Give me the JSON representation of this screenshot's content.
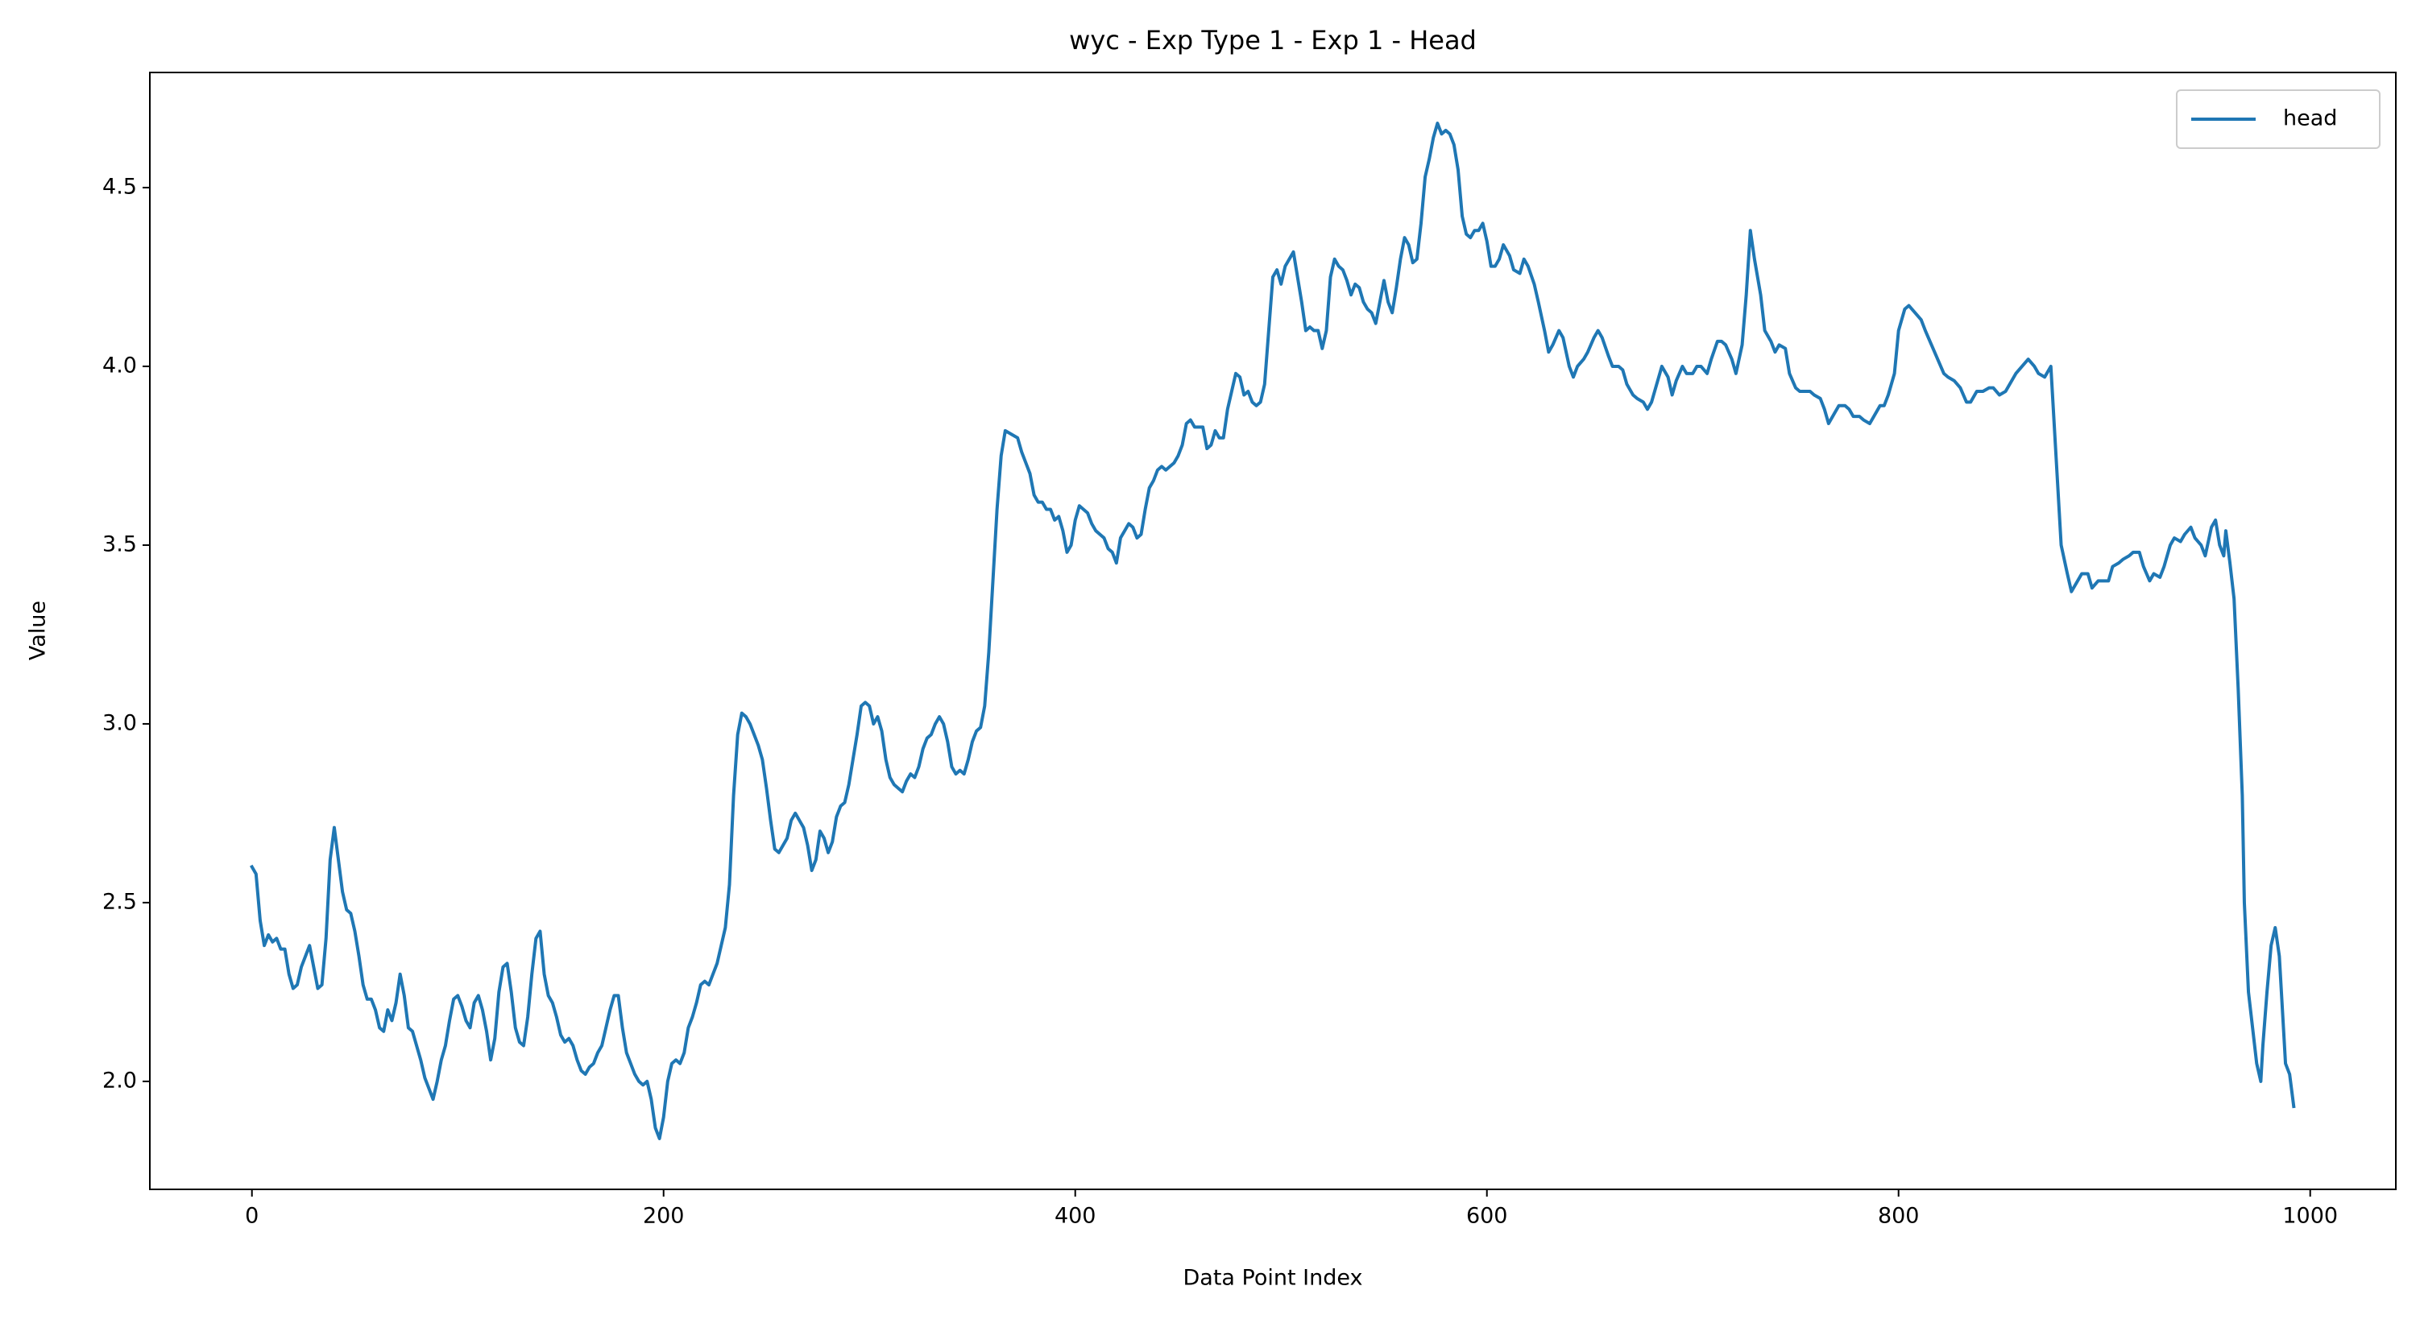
{
  "chart_data": {
    "type": "line",
    "title": "wyc - Exp Type 1 - Exp 1 - Head",
    "xlabel": "Data Point Index",
    "ylabel": "Value",
    "xlim": [
      -49.6,
      1041.6
    ],
    "ylim": [
      1.698,
      4.822
    ],
    "xticks": [
      0,
      200,
      400,
      600,
      800,
      1000
    ],
    "yticks": [
      {
        "value": 2,
        "label": "2.0"
      },
      2.5,
      {
        "value": 3,
        "label": "3.0"
      },
      3.5,
      {
        "value": 4,
        "label": "4.0"
      },
      4.5
    ],
    "grid": false,
    "legend": "upper right",
    "x": [
      0,
      2,
      4,
      6,
      8,
      10,
      12,
      14,
      16,
      18,
      20,
      22,
      24,
      26,
      28,
      30,
      32,
      34,
      36,
      38,
      40,
      42,
      44,
      46,
      48,
      50,
      52,
      54,
      56,
      58,
      60,
      62,
      64,
      66,
      68,
      70,
      72,
      74,
      76,
      78,
      80,
      82,
      84,
      86,
      88,
      90,
      92,
      94,
      96,
      98,
      100,
      102,
      104,
      106,
      108,
      110,
      112,
      114,
      116,
      118,
      120,
      122,
      124,
      126,
      128,
      130,
      132,
      134,
      136,
      138,
      140,
      142,
      144,
      146,
      148,
      150,
      152,
      154,
      156,
      158,
      160,
      162,
      164,
      166,
      168,
      170,
      172,
      174,
      176,
      178,
      180,
      182,
      184,
      186,
      188,
      190,
      192,
      194,
      196,
      198,
      200,
      202,
      204,
      206,
      208,
      210,
      212,
      214,
      216,
      218,
      220,
      222,
      224,
      226,
      228,
      230,
      232,
      234,
      236,
      238,
      240,
      242,
      244,
      246,
      248,
      250,
      252,
      254,
      256,
      258,
      260,
      262,
      264,
      266,
      268,
      270,
      272,
      274,
      276,
      278,
      280,
      282,
      284,
      286,
      288,
      290,
      292,
      294,
      296,
      298,
      300,
      302,
      304,
      306,
      308,
      310,
      312,
      314,
      316,
      318,
      320,
      322,
      324,
      326,
      328,
      330,
      332,
      334,
      336,
      338,
      340,
      342,
      344,
      346,
      348,
      350,
      352,
      354,
      356,
      358,
      360,
      362,
      364,
      366,
      372,
      374,
      376,
      378,
      380,
      382,
      384,
      386,
      388,
      390,
      392,
      394,
      396,
      398,
      400,
      402,
      406,
      408,
      410,
      412,
      414,
      416,
      418,
      420,
      422,
      424,
      426,
      428,
      430,
      432,
      434,
      436,
      438,
      440,
      442,
      444,
      446,
      448,
      450,
      452,
      454,
      456,
      458,
      460,
      462,
      464,
      466,
      468,
      470,
      472,
      474,
      476,
      478,
      480,
      482,
      484,
      486,
      488,
      490,
      492,
      494,
      496,
      498,
      500,
      502,
      504,
      506,
      508,
      510,
      512,
      514,
      516,
      518,
      520,
      522,
      524,
      526,
      528,
      530,
      532,
      534,
      536,
      538,
      540,
      542,
      544,
      546,
      548,
      550,
      552,
      554,
      556,
      558,
      560,
      562,
      564,
      566,
      568,
      570,
      572,
      574,
      576,
      578,
      580,
      582,
      584,
      586,
      588,
      590,
      592,
      594,
      596,
      598,
      600,
      602,
      604,
      606,
      608,
      611,
      613,
      616,
      618,
      620,
      623,
      625,
      628,
      630,
      632,
      635,
      637,
      640,
      642,
      644,
      647,
      649,
      652,
      654,
      656,
      659,
      661,
      664,
      666,
      668,
      671,
      673,
      676,
      678,
      680,
      683,
      685,
      688,
      690,
      692,
      695,
      697,
      700,
      702,
      704,
      707,
      709,
      712,
      714,
      716,
      719,
      721,
      724,
      726,
      728,
      730,
      733,
      735,
      738,
      740,
      742,
      745,
      747,
      750,
      752,
      754,
      757,
      759,
      762,
      764,
      766,
      769,
      771,
      774,
      776,
      778,
      781,
      783,
      786,
      788,
      791,
      793,
      795,
      798,
      800,
      803,
      805,
      808,
      811,
      813,
      816,
      819,
      822,
      824,
      827,
      830,
      833,
      835,
      838,
      841,
      844,
      846,
      849,
      852,
      855,
      857,
      860,
      863,
      866,
      868,
      871,
      874,
      877,
      879,
      882,
      884,
      887,
      889,
      892,
      894,
      897,
      899,
      902,
      904,
      907,
      909,
      912,
      914,
      917,
      919,
      922,
      924,
      927,
      929,
      932,
      934,
      937,
      939,
      942,
      944,
      947,
      949,
      952,
      954,
      956,
      958,
      959,
      961,
      963,
      965,
      967,
      968,
      970,
      972,
      974,
      976,
      977,
      979,
      981,
      983,
      985,
      987,
      988,
      990,
      992
    ],
    "series": [
      {
        "name": "head",
        "color": "#1f77b4",
        "values": [
          2.6,
          2.58,
          2.45,
          2.38,
          2.41,
          2.39,
          2.4,
          2.37,
          2.37,
          2.3,
          2.26,
          2.27,
          2.32,
          2.35,
          2.38,
          2.32,
          2.26,
          2.27,
          2.4,
          2.62,
          2.71,
          2.62,
          2.53,
          2.48,
          2.47,
          2.42,
          2.35,
          2.27,
          2.23,
          2.23,
          2.2,
          2.15,
          2.14,
          2.2,
          2.17,
          2.22,
          2.3,
          2.24,
          2.15,
          2.14,
          2.1,
          2.06,
          2.01,
          1.98,
          1.95,
          2.0,
          2.06,
          2.1,
          2.17,
          2.23,
          2.24,
          2.21,
          2.17,
          2.15,
          2.22,
          2.24,
          2.2,
          2.14,
          2.06,
          2.12,
          2.25,
          2.32,
          2.33,
          2.25,
          2.15,
          2.11,
          2.1,
          2.18,
          2.3,
          2.4,
          2.42,
          2.3,
          2.24,
          2.22,
          2.18,
          2.13,
          2.11,
          2.12,
          2.1,
          2.06,
          2.03,
          2.02,
          2.04,
          2.05,
          2.08,
          2.1,
          2.15,
          2.2,
          2.24,
          2.24,
          2.15,
          2.08,
          2.05,
          2.02,
          2.0,
          1.99,
          2.0,
          1.95,
          1.87,
          1.84,
          1.9,
          2.0,
          2.05,
          2.06,
          2.05,
          2.08,
          2.15,
          2.18,
          2.22,
          2.27,
          2.28,
          2.27,
          2.3,
          2.33,
          2.38,
          2.43,
          2.55,
          2.8,
          2.97,
          3.03,
          3.02,
          3.0,
          2.97,
          2.94,
          2.9,
          2.82,
          2.73,
          2.65,
          2.64,
          2.66,
          2.68,
          2.73,
          2.75,
          2.73,
          2.71,
          2.66,
          2.59,
          2.62,
          2.7,
          2.68,
          2.64,
          2.67,
          2.74,
          2.77,
          2.78,
          2.83,
          2.9,
          2.97,
          3.05,
          3.06,
          3.05,
          3.0,
          3.02,
          2.98,
          2.9,
          2.85,
          2.83,
          2.82,
          2.81,
          2.84,
          2.86,
          2.85,
          2.88,
          2.93,
          2.96,
          2.97,
          3.0,
          3.02,
          3.0,
          2.95,
          2.88,
          2.86,
          2.87,
          2.86,
          2.9,
          2.95,
          2.98,
          2.99,
          3.05,
          3.2,
          3.4,
          3.6,
          3.75,
          3.82,
          3.8,
          3.76,
          3.73,
          3.7,
          3.64,
          3.62,
          3.62,
          3.6,
          3.6,
          3.57,
          3.58,
          3.54,
          3.48,
          3.5,
          3.57,
          3.61,
          3.59,
          3.56,
          3.54,
          3.53,
          3.52,
          3.49,
          3.48,
          3.45,
          3.52,
          3.54,
          3.56,
          3.55,
          3.52,
          3.53,
          3.6,
          3.66,
          3.68,
          3.71,
          3.72,
          3.71,
          3.72,
          3.73,
          3.75,
          3.78,
          3.84,
          3.85,
          3.83,
          3.83,
          3.83,
          3.77,
          3.78,
          3.82,
          3.8,
          3.8,
          3.88,
          3.93,
          3.98,
          3.97,
          3.92,
          3.93,
          3.9,
          3.89,
          3.9,
          3.95,
          4.1,
          4.25,
          4.27,
          4.23,
          4.28,
          4.3,
          4.32,
          4.25,
          4.18,
          4.1,
          4.11,
          4.1,
          4.1,
          4.05,
          4.1,
          4.25,
          4.3,
          4.28,
          4.27,
          4.24,
          4.2,
          4.23,
          4.22,
          4.18,
          4.16,
          4.15,
          4.12,
          4.18,
          4.24,
          4.18,
          4.15,
          4.22,
          4.3,
          4.36,
          4.34,
          4.29,
          4.3,
          4.4,
          4.53,
          4.58,
          4.64,
          4.68,
          4.65,
          4.66,
          4.65,
          4.62,
          4.55,
          4.42,
          4.37,
          4.36,
          4.38,
          4.38,
          4.4,
          4.35,
          4.28,
          4.28,
          4.3,
          4.34,
          4.31,
          4.27,
          4.26,
          4.3,
          4.28,
          4.23,
          4.18,
          4.1,
          4.04,
          4.06,
          4.1,
          4.08,
          4.0,
          3.97,
          4.0,
          4.02,
          4.04,
          4.08,
          4.1,
          4.08,
          4.03,
          4.0,
          4.0,
          3.99,
          3.95,
          3.92,
          3.91,
          3.9,
          3.88,
          3.9,
          3.96,
          4.0,
          3.97,
          3.92,
          3.96,
          4.0,
          3.98,
          3.98,
          4.0,
          4.0,
          3.98,
          4.02,
          4.07,
          4.07,
          4.06,
          4.02,
          3.98,
          4.06,
          4.2,
          4.38,
          4.3,
          4.2,
          4.1,
          4.07,
          4.04,
          4.06,
          4.05,
          3.98,
          3.94,
          3.93,
          3.93,
          3.93,
          3.92,
          3.91,
          3.88,
          3.84,
          3.87,
          3.89,
          3.89,
          3.88,
          3.86,
          3.86,
          3.85,
          3.84,
          3.86,
          3.89,
          3.89,
          3.92,
          3.98,
          4.1,
          4.16,
          4.17,
          4.15,
          4.13,
          4.1,
          4.06,
          4.02,
          3.98,
          3.97,
          3.96,
          3.94,
          3.9,
          3.9,
          3.93,
          3.93,
          3.94,
          3.94,
          3.92,
          3.93,
          3.96,
          3.98,
          4.0,
          4.02,
          4.0,
          3.98,
          3.97,
          4.0,
          3.7,
          3.5,
          3.42,
          3.37,
          3.4,
          3.42,
          3.42,
          3.38,
          3.4,
          3.4,
          3.4,
          3.44,
          3.45,
          3.46,
          3.47,
          3.48,
          3.48,
          3.44,
          3.4,
          3.42,
          3.41,
          3.44,
          3.5,
          3.52,
          3.51,
          3.53,
          3.55,
          3.52,
          3.5,
          3.47,
          3.55,
          3.57,
          3.5,
          3.47,
          3.54,
          3.45,
          3.35,
          3.1,
          2.8,
          2.5,
          2.25,
          2.15,
          2.05,
          2.0,
          2.1,
          2.25,
          2.38,
          2.43,
          2.35,
          2.15,
          2.05,
          2.02,
          1.93
        ]
      }
    ]
  }
}
